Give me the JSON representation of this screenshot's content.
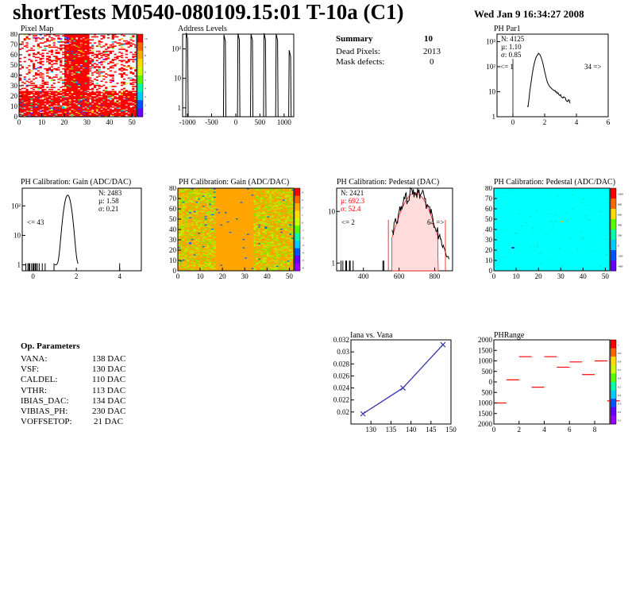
{
  "header": {
    "title": "shortTests M0540-080109.15:01 T-10a (C1)",
    "date": "Wed Jan  9 16:34:27 2008"
  },
  "summary": {
    "heading": "Summary",
    "heading_value": "10",
    "rows": [
      {
        "label": "Dead Pixels:",
        "value": "2013"
      },
      {
        "label": "Mask defects:",
        "value": "0"
      }
    ]
  },
  "op_params": {
    "heading": "Op. Parameters",
    "rows": [
      {
        "label": "VANA:",
        "value": "138 DAC"
      },
      {
        "label": "VSF:",
        "value": "130 DAC"
      },
      {
        "label": "CALDEL:",
        "value": "110 DAC"
      },
      {
        "label": "VTHR:",
        "value": "113 DAC"
      },
      {
        "label": "IBIAS_DAC:",
        "value": "134 DAC"
      },
      {
        "label": "VIBIAS_PH:",
        "value": "230 DAC"
      },
      {
        "label": "VOFFSETOP:",
        "value": "21 DAC"
      }
    ]
  },
  "colors": {
    "hist_fill": "#ffffff",
    "red": "#ff0000",
    "gain_map_base": "#ffa500",
    "pedestal_map_base": "#00ffff",
    "line_series": "#3333aa",
    "range_marks": "#ff0000"
  },
  "chart_data": [
    {
      "id": "pixel-map",
      "type": "heatmap",
      "title": "Pixel Map",
      "xticks": [
        "0",
        "10",
        "20",
        "30",
        "40",
        "50"
      ],
      "yticks": [
        "0",
        "10",
        "20",
        "30",
        "40",
        "50",
        "60",
        "70",
        "80"
      ],
      "xlim": [
        0,
        52
      ],
      "ylim": [
        0,
        80
      ],
      "zlim": [
        0,
        10
      ],
      "zticks": [
        "10",
        "9",
        "8",
        "7",
        "6",
        "5",
        "4",
        "3",
        "2",
        "1"
      ]
    },
    {
      "id": "address-levels",
      "type": "line",
      "title": "Address Levels",
      "log_y": true,
      "xticks": [
        "-1000",
        "-500",
        "0",
        "500",
        "1000"
      ],
      "yticks": [
        "1",
        "10",
        "10²"
      ],
      "xlim": [
        -1100,
        1200
      ],
      "peaks_x": [
        -1010,
        -230,
        60,
        330,
        600,
        850,
        1120
      ]
    },
    {
      "id": "ph-par1",
      "type": "line",
      "title": "PH Par1",
      "log_y": true,
      "stats": {
        "n": "N: 4125",
        "mu": "µ: 1.10",
        "sigma": "σ: 0.85"
      },
      "underflow": "<= 1",
      "overflow": "34 =>",
      "xticks": [
        "0",
        "2",
        "4",
        "6"
      ],
      "yticks": [
        "1",
        "10",
        "10²",
        "10³"
      ],
      "xlim": [
        -1,
        6
      ],
      "peak": 1.6
    },
    {
      "id": "ph-gain-hist",
      "type": "line",
      "title": "PH Calibration: Gain (ADC/DAC)",
      "log_y": true,
      "stats": {
        "n": "N: 2483",
        "mu": "µ: 1.58",
        "sigma": "σ: 0.21"
      },
      "underflow": "<= 43",
      "xticks": [
        "0",
        "2",
        "4"
      ],
      "yticks": [
        "1",
        "10",
        "10²"
      ],
      "xlim": [
        -0.5,
        5
      ],
      "peak": 1.6
    },
    {
      "id": "ph-gain-map",
      "type": "heatmap",
      "title": "PH Calibration: Gain (ADC/DAC)",
      "xticks": [
        "0",
        "10",
        "20",
        "30",
        "40",
        "50"
      ],
      "yticks": [
        "0",
        "10",
        "20",
        "30",
        "40",
        "50",
        "60",
        "70",
        "80"
      ],
      "zticks": [
        "4",
        "3",
        "2",
        "1",
        "0",
        "-1",
        "-2",
        "-3",
        "-4",
        "-5",
        "-6"
      ]
    },
    {
      "id": "ph-pedestal-hist",
      "type": "line",
      "title": "PH Calibration: Pedestal (DAC)",
      "log_y": true,
      "stats": {
        "n": "N: 2421",
        "mu": "µ: 692.3",
        "sigma": "σ: 52.4"
      },
      "underflow": "<= 2",
      "overflow": "64 =>",
      "xticks": [
        "400",
        "600",
        "800"
      ],
      "yticks": [
        "1",
        "10"
      ],
      "xlim": [
        250,
        900
      ],
      "peak": 690
    },
    {
      "id": "ph-pedestal-map",
      "type": "heatmap",
      "title": "PH Calibration: Pedestal (ADC/DAC)",
      "xticks": [
        "0",
        "10",
        "20",
        "30",
        "40",
        "50"
      ],
      "yticks": [
        "0",
        "10",
        "20",
        "30",
        "40",
        "50",
        "60",
        "70",
        "80"
      ],
      "zticks": [
        "1000",
        "800",
        "600",
        "400",
        "200",
        "0",
        "-200",
        "-400"
      ]
    },
    {
      "id": "iana-vana",
      "type": "line",
      "title": "Iana vs. Vana",
      "x": [
        128,
        138,
        148
      ],
      "y": [
        0.0197,
        0.024,
        0.0312
      ],
      "xlim": [
        125,
        150
      ],
      "ylim": [
        0.018,
        0.032
      ],
      "xticks": [
        "130",
        "135",
        "140",
        "145",
        "150"
      ],
      "yticks": [
        "0.02",
        "0.022",
        "0.024",
        "0.026",
        "0.028",
        "0.03",
        "0.032"
      ]
    },
    {
      "id": "ph-range",
      "type": "scatter",
      "title": "PHRange",
      "x": [
        0,
        1,
        2,
        3,
        4,
        5,
        6,
        7,
        8,
        9
      ],
      "y": [
        -1000,
        100,
        1200,
        -250,
        1200,
        700,
        950,
        350,
        1000,
        -900
      ],
      "xlim": [
        0,
        9.2
      ],
      "ylim": [
        -2000,
        2000
      ],
      "xticks": [
        "0",
        "2",
        "4",
        "6",
        "8"
      ],
      "yticks": [
        "2000",
        "1500",
        "1000",
        "500",
        "0",
        "500",
        "1000",
        "1500",
        "2000"
      ],
      "zticks": [
        "1",
        "0.9",
        "0.8",
        "0.7",
        "0.6",
        "0.5",
        "0.4",
        "0.3",
        "0.2",
        "0.1"
      ]
    }
  ]
}
